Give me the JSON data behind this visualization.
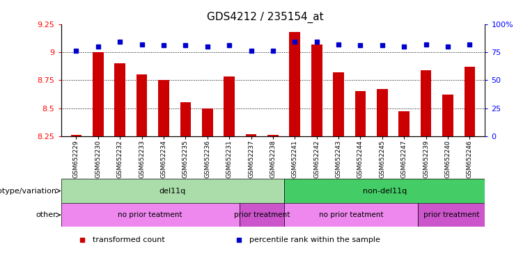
{
  "title": "GDS4212 / 235154_at",
  "samples": [
    "GSM652229",
    "GSM652230",
    "GSM652232",
    "GSM652233",
    "GSM652234",
    "GSM652235",
    "GSM652236",
    "GSM652231",
    "GSM652237",
    "GSM652238",
    "GSM652241",
    "GSM652242",
    "GSM652243",
    "GSM652244",
    "GSM652245",
    "GSM652247",
    "GSM652239",
    "GSM652240",
    "GSM652246"
  ],
  "red_values": [
    8.26,
    9.0,
    8.9,
    8.8,
    8.75,
    8.55,
    8.5,
    8.78,
    8.27,
    8.26,
    9.18,
    9.07,
    8.82,
    8.65,
    8.67,
    8.47,
    8.84,
    8.62,
    8.87
  ],
  "blue_values": [
    76,
    80,
    84,
    82,
    81,
    81,
    80,
    81,
    76,
    76,
    84,
    84,
    82,
    81,
    81,
    80,
    82,
    80,
    82
  ],
  "ylim_left": [
    8.25,
    9.25
  ],
  "ylim_right": [
    0,
    100
  ],
  "yticks_left": [
    8.25,
    8.5,
    8.75,
    9.0,
    9.25
  ],
  "ytick_labels_left": [
    "8.25",
    "8.5",
    "8.75",
    "9",
    "9.25"
  ],
  "yticks_right": [
    0,
    25,
    50,
    75,
    100
  ],
  "ytick_labels_right": [
    "0",
    "25",
    "50",
    "75",
    "100%"
  ],
  "bar_color": "#cc0000",
  "dot_color": "#0000cc",
  "bar_bottom": 8.25,
  "groups": [
    {
      "label": "del11q",
      "color": "#aaddaa",
      "start": 0,
      "end": 10
    },
    {
      "label": "non-del11q",
      "color": "#44cc66",
      "start": 10,
      "end": 19
    }
  ],
  "other_groups": [
    {
      "label": "no prior teatment",
      "color": "#ee88ee",
      "start": 0,
      "end": 8
    },
    {
      "label": "prior treatment",
      "color": "#cc55cc",
      "start": 8,
      "end": 10
    },
    {
      "label": "no prior teatment",
      "color": "#ee88ee",
      "start": 10,
      "end": 16
    },
    {
      "label": "prior treatment",
      "color": "#cc55cc",
      "start": 16,
      "end": 19
    }
  ],
  "legend_items": [
    {
      "label": "transformed count",
      "color": "#cc0000"
    },
    {
      "label": "percentile rank within the sample",
      "color": "#0000cc"
    }
  ],
  "title_fontsize": 11,
  "tick_fontsize": 8,
  "annot_fontsize": 8,
  "legend_fontsize": 8
}
